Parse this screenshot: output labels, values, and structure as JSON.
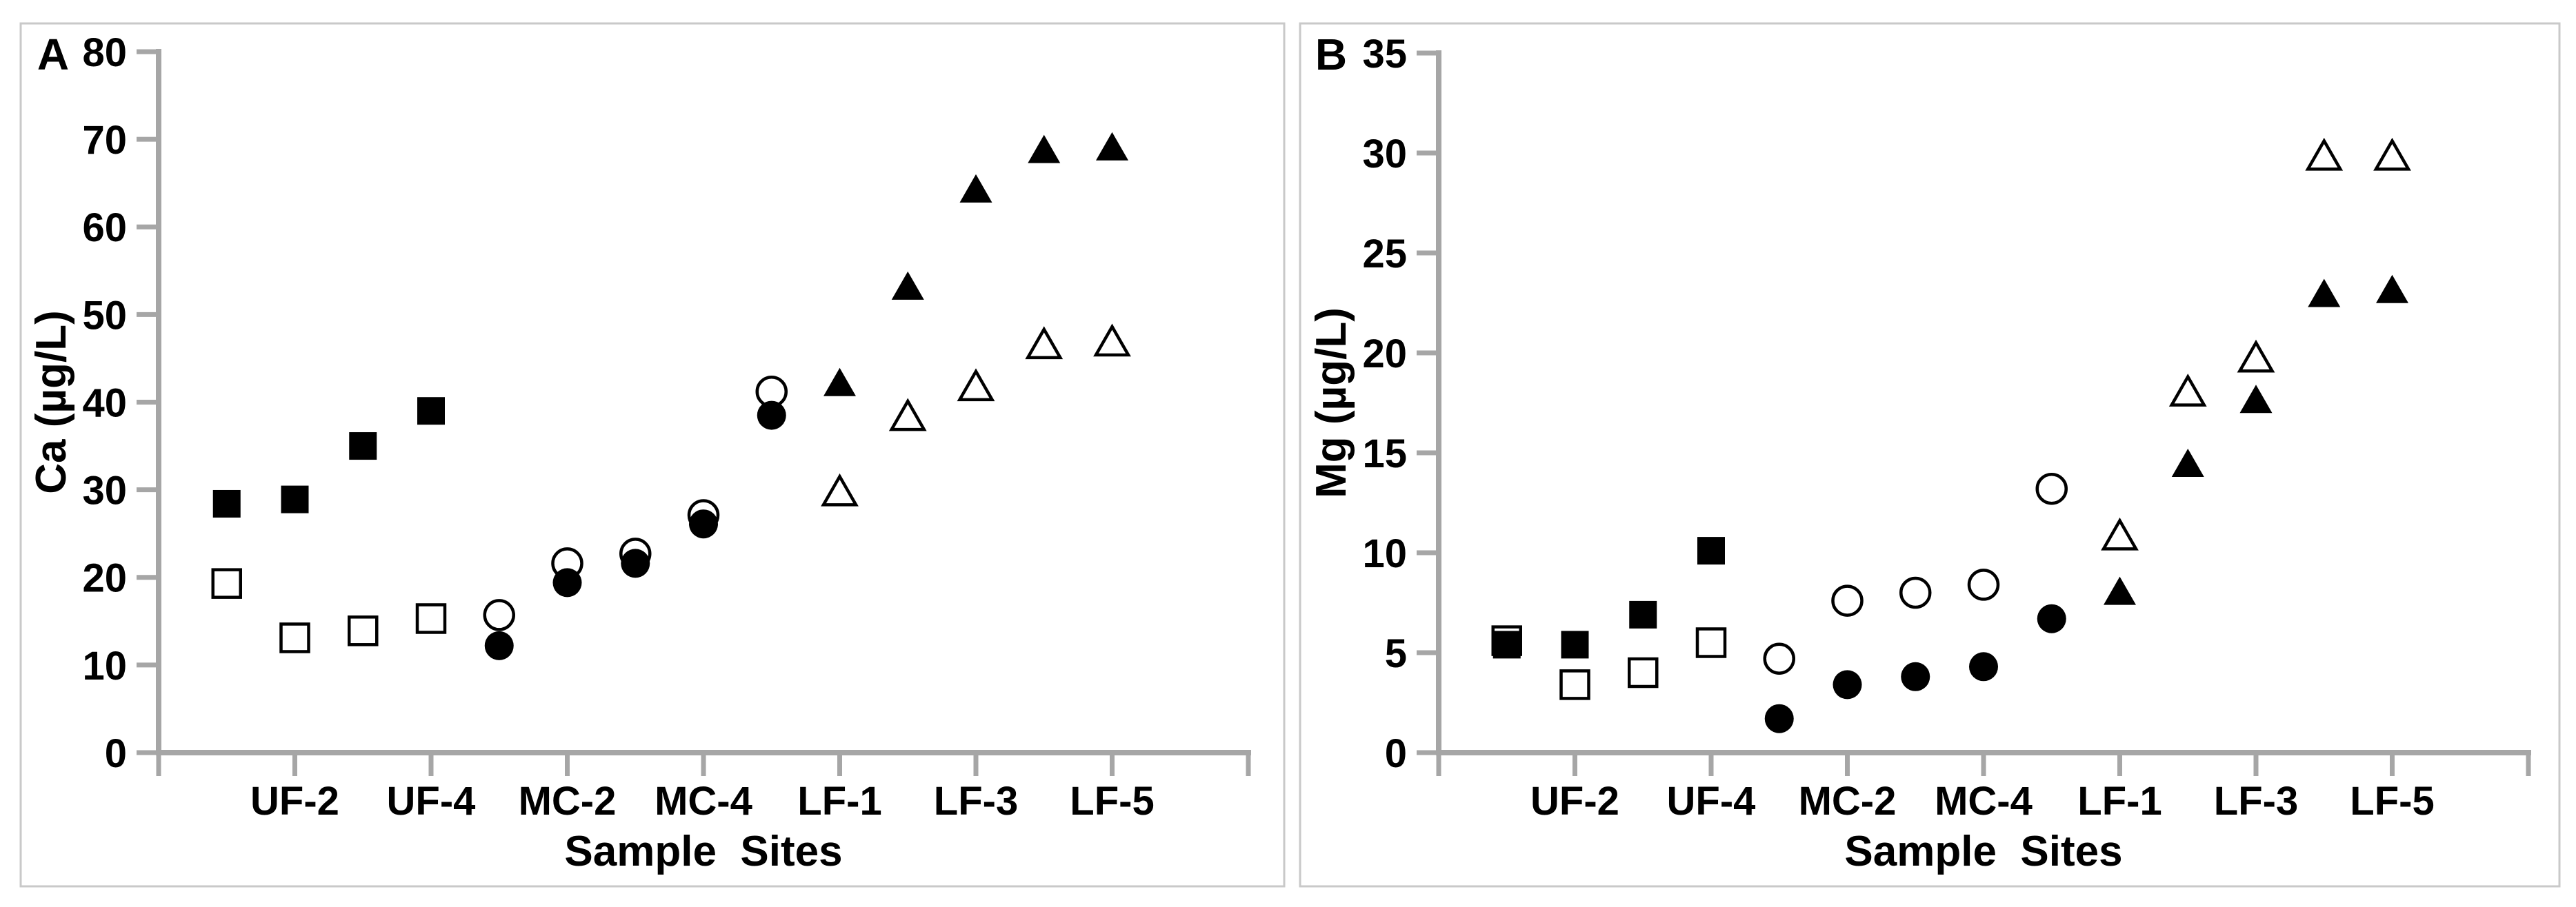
{
  "figure": {
    "background": "#ffffff",
    "frame_color": "#c9c9c9",
    "axis_color": "#a6a6a6",
    "marker_color": "#000000",
    "text_color": "#000000"
  },
  "chart_data": [
    {
      "type": "scatter",
      "panel_letter": "A",
      "xlabel": "Sample  Sites",
      "ylabel": "Ca (µg/L)",
      "ylim": [
        0,
        80
      ],
      "yticks": [
        0,
        10,
        20,
        30,
        40,
        50,
        60,
        70,
        80
      ],
      "grid": false,
      "legend": "none",
      "site_count": 14,
      "xtick_labels": [
        "UF-2",
        "UF-4",
        "MC-2",
        "MC-4",
        "LF-1",
        "LF-3",
        "LF-5"
      ],
      "xtick_label_sites": [
        2,
        4,
        6,
        8,
        10,
        12,
        14
      ],
      "series": [
        {
          "name": "open-square",
          "marker": "square",
          "fill": "open",
          "sites": [
            1,
            2,
            3,
            4
          ],
          "values": [
            19.3,
            13.1,
            13.9,
            15.3
          ]
        },
        {
          "name": "open-circle",
          "marker": "circle",
          "fill": "open",
          "sites": [
            5,
            6,
            7,
            8,
            9
          ],
          "values": [
            15.7,
            21.6,
            22.7,
            27.1,
            41.2
          ]
        },
        {
          "name": "open-triangle",
          "marker": "triangle",
          "fill": "open",
          "sites": [
            10,
            11,
            12,
            13,
            14
          ],
          "values": [
            29.9,
            38.5,
            41.9,
            46.7,
            47.0
          ]
        },
        {
          "name": "filled-square",
          "marker": "square",
          "fill": "filled",
          "sites": [
            1,
            2,
            3,
            4
          ],
          "values": [
            28.4,
            28.9,
            35.0,
            39.0
          ]
        },
        {
          "name": "filled-circle",
          "marker": "circle",
          "fill": "filled",
          "sites": [
            5,
            6,
            7,
            8,
            9
          ],
          "values": [
            12.2,
            19.4,
            21.6,
            26.1,
            38.5
          ]
        },
        {
          "name": "filled-triangle",
          "marker": "triangle",
          "fill": "filled",
          "sites": [
            10,
            11,
            12,
            13,
            14
          ],
          "values": [
            42.3,
            53.3,
            64.4,
            68.9,
            69.2
          ]
        }
      ]
    },
    {
      "type": "scatter",
      "panel_letter": "B",
      "xlabel": "Sample  Sites",
      "ylabel": "Mg (µg/L)",
      "ylim": [
        0,
        35
      ],
      "yticks": [
        0,
        5,
        10,
        15,
        20,
        25,
        30,
        35
      ],
      "grid": false,
      "legend": "none",
      "site_count": 14,
      "xtick_labels": [
        "UF-2",
        "UF-4",
        "MC-2",
        "MC-4",
        "LF-1",
        "LF-3",
        "LF-5"
      ],
      "xtick_label_sites": [
        2,
        4,
        6,
        8,
        10,
        12,
        14
      ],
      "series": [
        {
          "name": "open-square",
          "marker": "square",
          "fill": "open",
          "sites": [
            1,
            2,
            3,
            4
          ],
          "values": [
            5.6,
            3.4,
            4.0,
            5.5
          ]
        },
        {
          "name": "open-circle",
          "marker": "circle",
          "fill": "open",
          "sites": [
            5,
            6,
            7,
            8,
            9
          ],
          "values": [
            4.7,
            7.6,
            8.0,
            8.4,
            13.2
          ]
        },
        {
          "name": "open-triangle",
          "marker": "triangle",
          "fill": "open",
          "sites": [
            10,
            11,
            12,
            13,
            14
          ],
          "values": [
            10.9,
            18.1,
            19.8,
            29.9,
            29.9
          ]
        },
        {
          "name": "filled-square",
          "marker": "square",
          "fill": "filled",
          "sites": [
            1,
            2,
            3,
            4
          ],
          "values": [
            5.4,
            5.4,
            6.9,
            10.1
          ]
        },
        {
          "name": "filled-circle",
          "marker": "circle",
          "fill": "filled",
          "sites": [
            5,
            6,
            7,
            8,
            9
          ],
          "values": [
            1.7,
            3.4,
            3.8,
            4.3,
            6.7
          ]
        },
        {
          "name": "filled-triangle",
          "marker": "triangle",
          "fill": "filled",
          "sites": [
            10,
            11,
            12,
            13,
            14
          ],
          "values": [
            8.1,
            14.5,
            17.7,
            23.0,
            23.2
          ]
        }
      ]
    }
  ]
}
